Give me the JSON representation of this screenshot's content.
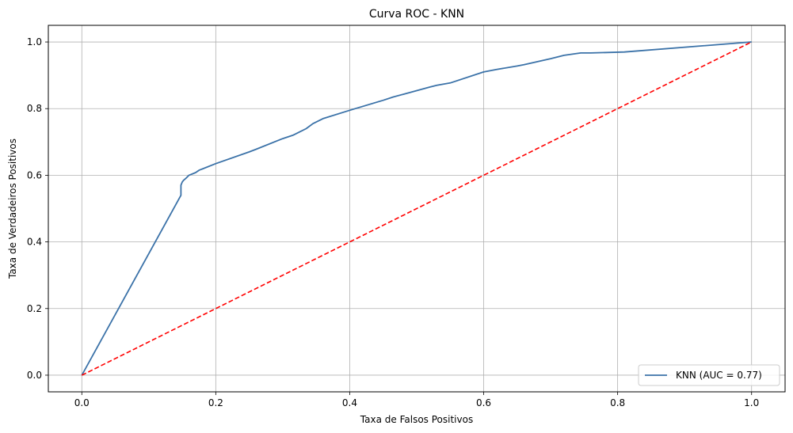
{
  "chart_data": {
    "type": "line",
    "title": "Curva ROC - KNN",
    "xlabel": "Taxa de Falsos Positivos",
    "ylabel": "Taxa de Verdadeiros Positivos",
    "xlim": [
      -0.05,
      1.05
    ],
    "ylim": [
      -0.05,
      1.05
    ],
    "xticks": [
      "0.0",
      "0.2",
      "0.4",
      "0.6",
      "0.8",
      "1.0"
    ],
    "yticks": [
      "0.0",
      "0.2",
      "0.4",
      "0.6",
      "0.8",
      "1.0"
    ],
    "grid": true,
    "legend": {
      "placement": "lower-right"
    },
    "series": [
      {
        "name": "KNN (AUC = 0.77)",
        "color": "#3b72a8",
        "style": "solid",
        "x": [
          0.0,
          0.148,
          0.148,
          0.15,
          0.152,
          0.155,
          0.16,
          0.17,
          0.175,
          0.2,
          0.25,
          0.26,
          0.3,
          0.315,
          0.335,
          0.345,
          0.36,
          0.4,
          0.45,
          0.465,
          0.48,
          0.52,
          0.53,
          0.55,
          0.6,
          0.62,
          0.65,
          0.66,
          0.7,
          0.72,
          0.745,
          0.76,
          0.81,
          1.0
        ],
        "y": [
          0.0,
          0.54,
          0.57,
          0.58,
          0.585,
          0.59,
          0.6,
          0.608,
          0.615,
          0.635,
          0.67,
          0.678,
          0.71,
          0.72,
          0.74,
          0.755,
          0.77,
          0.795,
          0.825,
          0.835,
          0.843,
          0.865,
          0.87,
          0.877,
          0.91,
          0.918,
          0.928,
          0.932,
          0.95,
          0.96,
          0.967,
          0.967,
          0.97,
          1.0
        ]
      },
      {
        "name": "",
        "color": "#ff0000",
        "style": "dashed",
        "x": [
          0.0,
          1.0
        ],
        "y": [
          0.0,
          1.0
        ]
      }
    ]
  }
}
